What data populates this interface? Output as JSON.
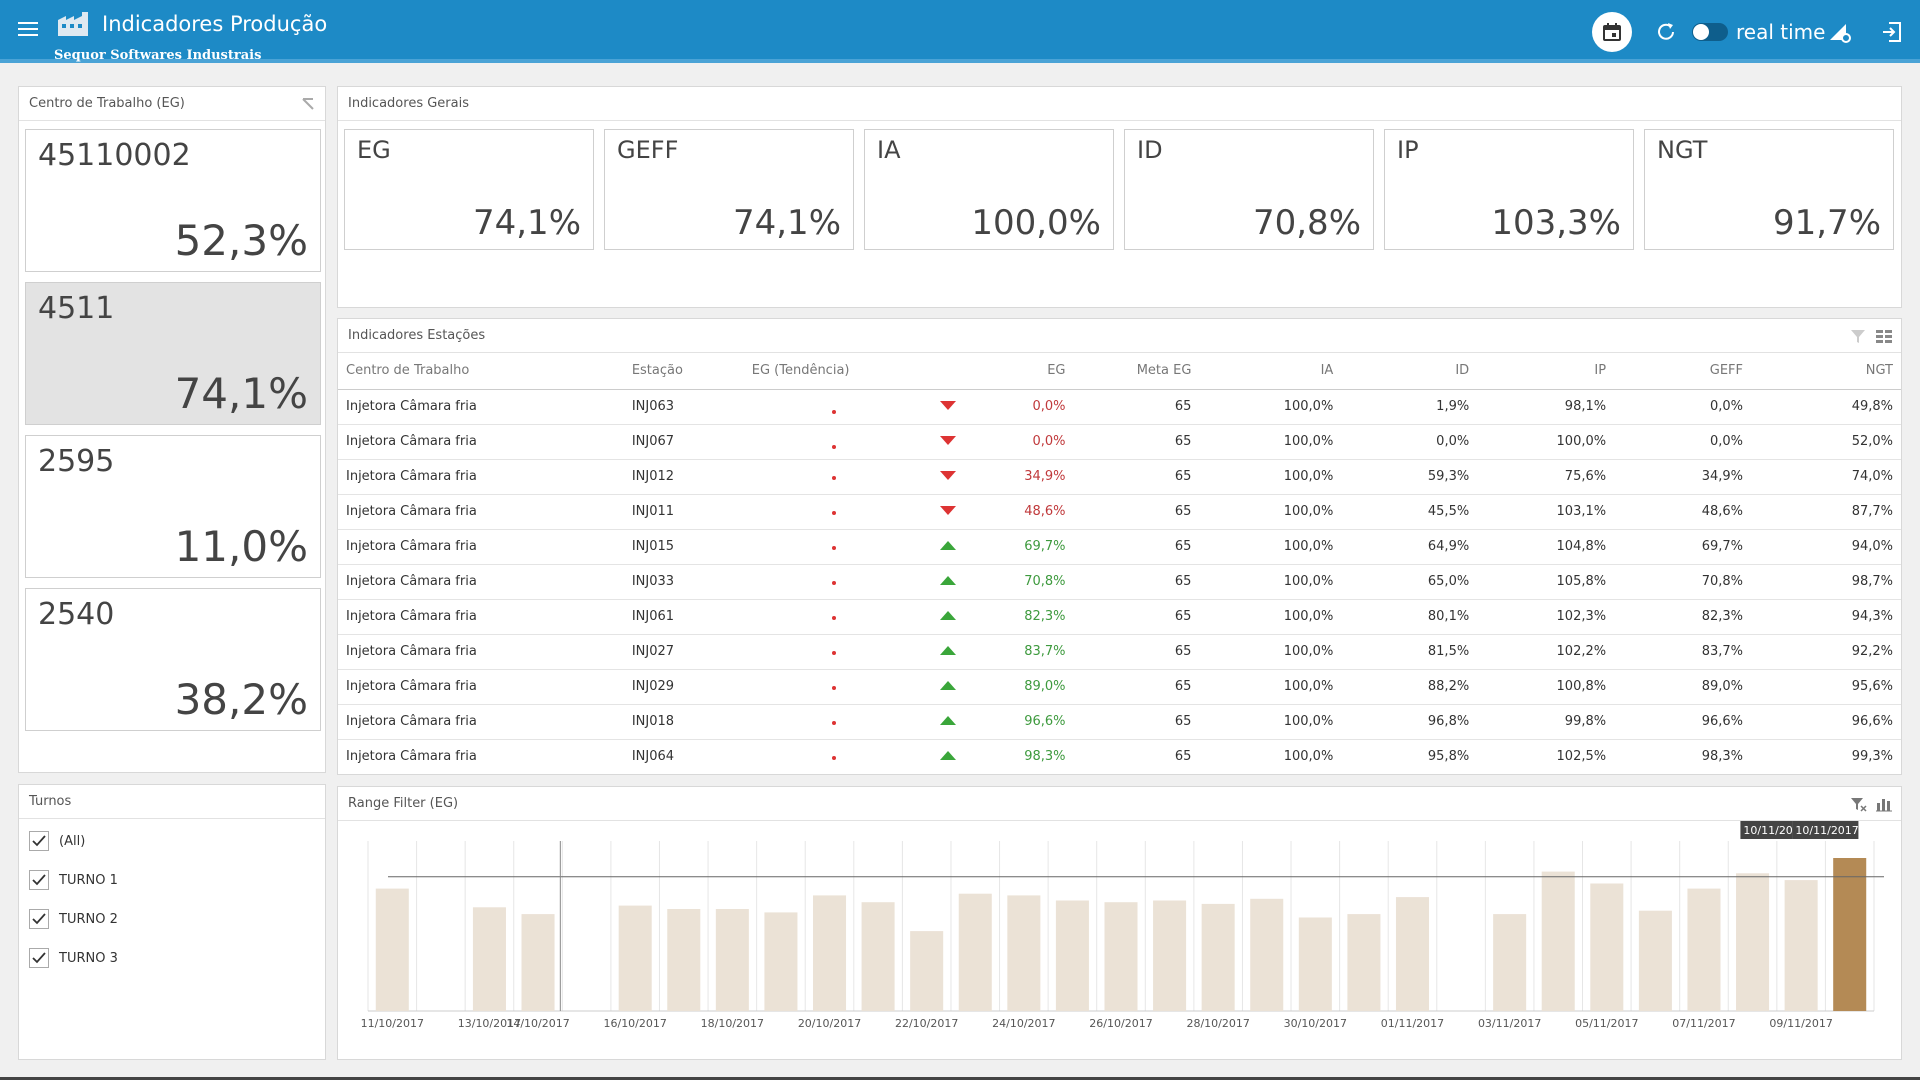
{
  "header": {
    "title": "Indicadores Produção",
    "subtitle": "Sequor Softwares Industrais",
    "realtime_label": "real time",
    "bg_color": "#1d8ac6"
  },
  "work_centers": {
    "title": "Centro de Trabalho (EG)",
    "items": [
      {
        "name": "45110002",
        "value": "52,3%"
      },
      {
        "name": "4511",
        "value": "74,1%"
      },
      {
        "name": "2595",
        "value": "11,0%"
      },
      {
        "name": "2540",
        "value": "38,2%"
      }
    ]
  },
  "general": {
    "title": "Indicadores Gerais",
    "kpis": [
      {
        "name": "EG",
        "value": "74,1%"
      },
      {
        "name": "GEFF",
        "value": "74,1%"
      },
      {
        "name": "IA",
        "value": "100,0%"
      },
      {
        "name": "ID",
        "value": "70,8%"
      },
      {
        "name": "IP",
        "value": "103,3%"
      },
      {
        "name": "NGT",
        "value": "91,7%"
      }
    ]
  },
  "stations": {
    "title": "Indicadores Estações",
    "columns": [
      "Centro de Trabalho",
      "Estação",
      "EG (Tendência)",
      "EG",
      "Meta EG",
      "IA",
      "ID",
      "IP",
      "GEFF",
      "NGT"
    ],
    "rows": [
      {
        "ct": "Injetora Câmara fria",
        "st": "INJ063",
        "trend": "down",
        "eg": "0,0%",
        "meta": "65",
        "ia": "100,0%",
        "id": "1,9%",
        "ip": "98,1%",
        "geff": "0,0%",
        "ngt": "49,8%"
      },
      {
        "ct": "Injetora Câmara fria",
        "st": "INJ067",
        "trend": "down",
        "eg": "0,0%",
        "meta": "65",
        "ia": "100,0%",
        "id": "0,0%",
        "ip": "100,0%",
        "geff": "0,0%",
        "ngt": "52,0%"
      },
      {
        "ct": "Injetora Câmara fria",
        "st": "INJ012",
        "trend": "down",
        "eg": "34,9%",
        "meta": "65",
        "ia": "100,0%",
        "id": "59,3%",
        "ip": "75,6%",
        "geff": "34,9%",
        "ngt": "74,0%"
      },
      {
        "ct": "Injetora Câmara fria",
        "st": "INJ011",
        "trend": "down",
        "eg": "48,6%",
        "meta": "65",
        "ia": "100,0%",
        "id": "45,5%",
        "ip": "103,1%",
        "geff": "48,6%",
        "ngt": "87,7%"
      },
      {
        "ct": "Injetora Câmara fria",
        "st": "INJ015",
        "trend": "up",
        "eg": "69,7%",
        "meta": "65",
        "ia": "100,0%",
        "id": "64,9%",
        "ip": "104,8%",
        "geff": "69,7%",
        "ngt": "94,0%"
      },
      {
        "ct": "Injetora Câmara fria",
        "st": "INJ033",
        "trend": "up",
        "eg": "70,8%",
        "meta": "65",
        "ia": "100,0%",
        "id": "65,0%",
        "ip": "105,8%",
        "geff": "70,8%",
        "ngt": "98,7%"
      },
      {
        "ct": "Injetora Câmara fria",
        "st": "INJ061",
        "trend": "up",
        "eg": "82,3%",
        "meta": "65",
        "ia": "100,0%",
        "id": "80,1%",
        "ip": "102,3%",
        "geff": "82,3%",
        "ngt": "94,3%"
      },
      {
        "ct": "Injetora Câmara fria",
        "st": "INJ027",
        "trend": "up",
        "eg": "83,7%",
        "meta": "65",
        "ia": "100,0%",
        "id": "81,5%",
        "ip": "102,2%",
        "geff": "83,7%",
        "ngt": "92,2%"
      },
      {
        "ct": "Injetora Câmara fria",
        "st": "INJ029",
        "trend": "up",
        "eg": "89,0%",
        "meta": "65",
        "ia": "100,0%",
        "id": "88,2%",
        "ip": "100,8%",
        "geff": "89,0%",
        "ngt": "95,6%"
      },
      {
        "ct": "Injetora Câmara fria",
        "st": "INJ018",
        "trend": "up",
        "eg": "96,6%",
        "meta": "65",
        "ia": "100,0%",
        "id": "96,8%",
        "ip": "99,8%",
        "geff": "96,6%",
        "ngt": "96,6%"
      },
      {
        "ct": "Injetora Câmara fria",
        "st": "INJ064",
        "trend": "up",
        "eg": "98,3%",
        "meta": "65",
        "ia": "100,0%",
        "id": "95,8%",
        "ip": "102,5%",
        "geff": "98,3%",
        "ngt": "99,3%"
      }
    ]
  },
  "shifts": {
    "title": "Turnos",
    "items": [
      "(All)",
      "TURNO 1",
      "TURNO 2",
      "TURNO 3"
    ]
  },
  "range_filter": {
    "title": "Range Filter (EG)",
    "selection_left": "10/11/20",
    "selection_right": "10/11/2017"
  },
  "chart_data": {
    "type": "bar",
    "x_tick_labels": [
      "11/10/2017",
      "13/10/2017",
      "14/10/2017",
      "16/10/2017",
      "18/10/2017",
      "20/10/2017",
      "22/10/2017",
      "24/10/2017",
      "26/10/2017",
      "28/10/2017",
      "30/10/2017",
      "01/11/2017",
      "03/11/2017",
      "05/11/2017",
      "07/11/2017",
      "09/11/2017"
    ],
    "slots": 31,
    "values": [
      72,
      null,
      61,
      57,
      null,
      62,
      60,
      60,
      58,
      68,
      64,
      47,
      69,
      68,
      65,
      64,
      65,
      63,
      66,
      55,
      57,
      67,
      null,
      57,
      82,
      75,
      59,
      72,
      81,
      77,
      90
    ],
    "highlight_index": 30,
    "reference": 79,
    "ylim": [
      0,
      100
    ],
    "bar_color": "#ebe2d6",
    "highlight_color": "#b48a55"
  }
}
